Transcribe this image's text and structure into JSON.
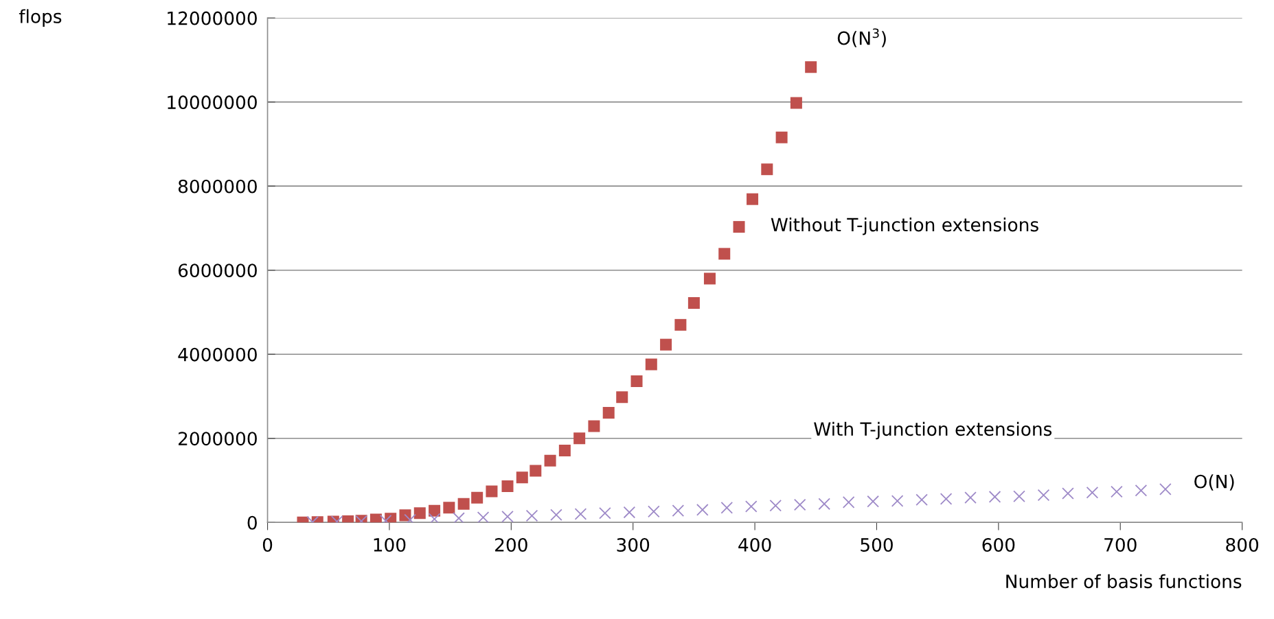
{
  "chart_data": {
    "type": "scatter",
    "xlabel": "Number of basis functions",
    "xlim": [
      0,
      800
    ],
    "xticks": [
      0,
      100,
      200,
      300,
      400,
      500,
      600,
      700,
      800
    ],
    "ylim": [
      0,
      12000000
    ],
    "yticks": [
      0,
      2000000,
      4000000,
      6000000,
      8000000,
      10000000,
      12000000
    ],
    "grid": "y",
    "series": [
      {
        "name": "Without T-junction extensions",
        "color": "#c0504d",
        "marker": "square",
        "x": [
          29,
          41,
          54,
          66,
          77,
          89,
          101,
          113,
          125,
          137,
          149,
          161,
          172,
          184,
          197,
          209,
          220,
          232,
          244,
          256,
          268,
          280,
          291,
          303,
          315,
          327,
          339,
          350,
          363,
          375,
          387,
          398,
          410,
          422,
          434,
          446
        ],
        "values": [
          0,
          10000,
          20000,
          30000,
          40000,
          70000,
          90000,
          170000,
          220000,
          280000,
          350000,
          440000,
          590000,
          740000,
          860000,
          1070000,
          1230000,
          1470000,
          1710000,
          2000000,
          2290000,
          2610000,
          2980000,
          3360000,
          3760000,
          4230000,
          4700000,
          5220000,
          5800000,
          6390000,
          7030000,
          7690000,
          8400000,
          9160000,
          9980000,
          10830000
        ]
      },
      {
        "name": "With T-junction extensions",
        "color": "#9e8ac8",
        "marker": "cross",
        "x": [
          37,
          57,
          77,
          97,
          117,
          137,
          157,
          177,
          197,
          217,
          237,
          257,
          277,
          297,
          317,
          337,
          357,
          377,
          397,
          417,
          437,
          457,
          477,
          497,
          517,
          537,
          557,
          577,
          597,
          617,
          637,
          657,
          677,
          697,
          717,
          737
        ],
        "values": [
          10000,
          20000,
          30000,
          40000,
          60000,
          80000,
          100000,
          120000,
          140000,
          160000,
          180000,
          200000,
          220000,
          240000,
          260000,
          280000,
          300000,
          350000,
          380000,
          400000,
          420000,
          440000,
          480000,
          500000,
          510000,
          540000,
          560000,
          590000,
          610000,
          620000,
          650000,
          690000,
          710000,
          730000,
          760000,
          790000
        ]
      }
    ],
    "annotations": [
      "O(N$^{3}$)",
      "O(N)",
      "flops"
    ]
  }
}
